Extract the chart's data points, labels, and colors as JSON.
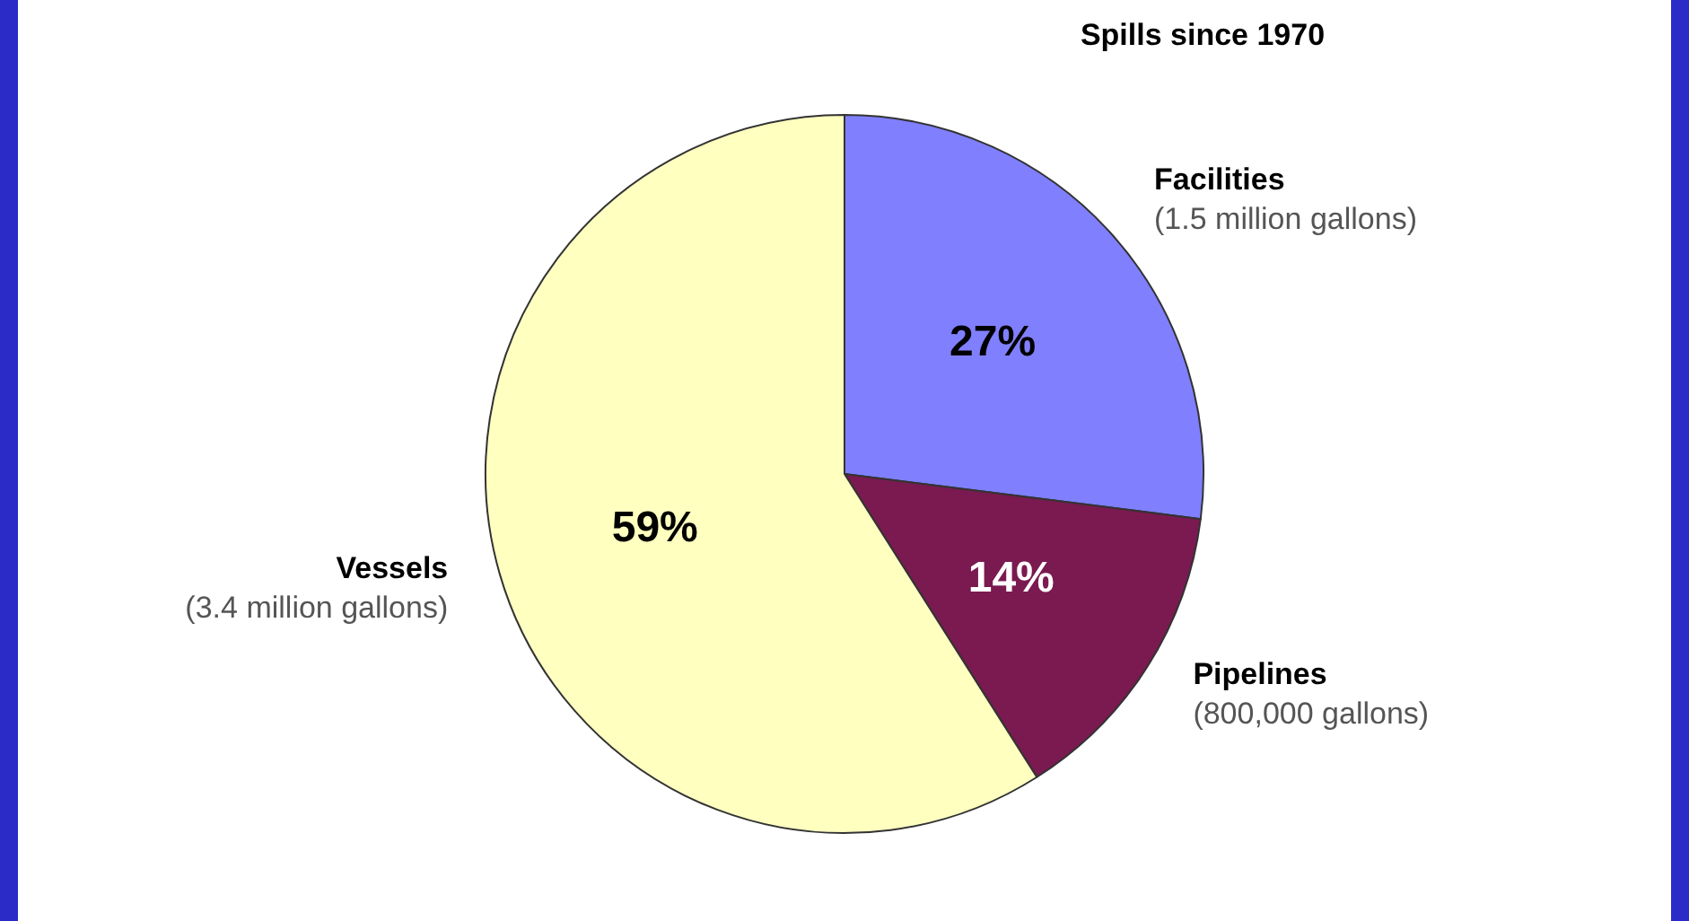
{
  "chart_data": {
    "type": "pie",
    "title": "Spills since 1970",
    "categories": [
      "Facilities\n(1.5 million gallons)",
      "Pipelines\n(800,000 gallons)",
      "Vessels\n(3.4 million gallons)"
    ],
    "values": [
      27,
      14,
      59
    ],
    "colors": [
      "#8080ff",
      "#7a1a50",
      "#ffffc0"
    ],
    "value_labels": [
      "27%",
      "14%",
      "59%"
    ],
    "legend": false
  }
}
